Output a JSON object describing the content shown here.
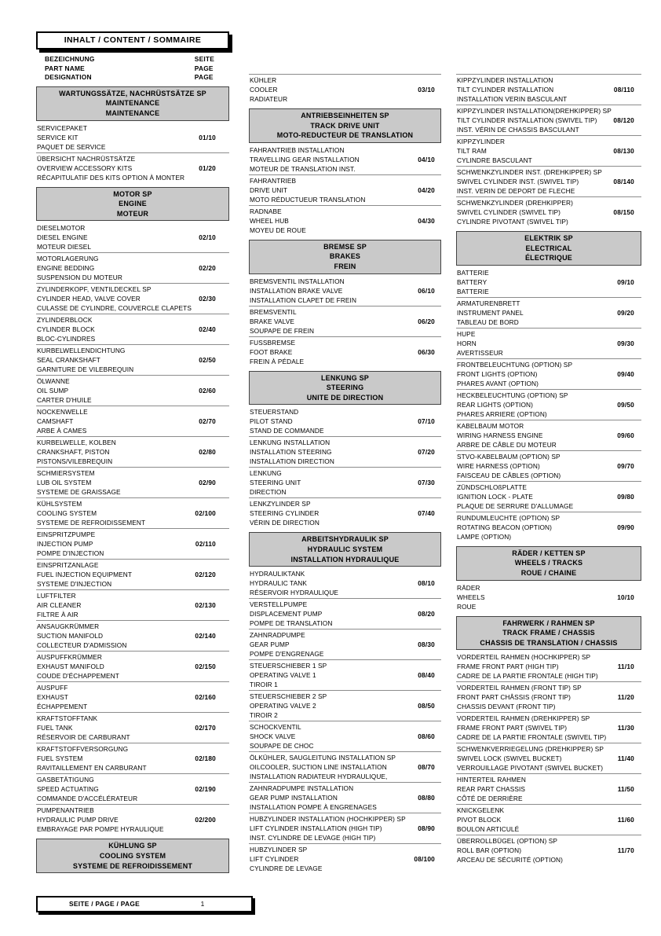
{
  "header": {
    "title": "INHALT / CONTENT / SOMMAIRE",
    "left_labels": [
      "BEZEICHNUNG",
      "PART NAME",
      "DESIGNATION"
    ],
    "right_labels": [
      "SEITE",
      "PAGE",
      "PAGE"
    ]
  },
  "footer": {
    "label": "SEITE / PAGE / PAGE",
    "page_number": "1"
  },
  "colors": {
    "section_header_bg": "#c9c9c9",
    "rule": "#8c8c8c",
    "text": "#000000",
    "page_bg": "#ffffff"
  },
  "columns": [
    {
      "blocks": [
        {
          "type": "section",
          "lines": [
            "WARTUNGSSÄTZE, NACHRÜSTSÄTZE SP",
            "MAINTENANCE",
            "MAINTENANCE"
          ]
        },
        {
          "type": "item",
          "lines": [
            "SERVICEPAKET",
            "SERVICE KIT",
            "PAQUET DE SERVICE"
          ],
          "page": "01/10"
        },
        {
          "type": "item",
          "lines": [
            "ÜBERSICHT NACHRÜSTSÄTZE",
            "OVERVIEW ACCESSORY KITS",
            "RÉCAPITULATIF DES KITS OPTION À MONTER"
          ],
          "page": "01/20"
        },
        {
          "type": "section",
          "lines": [
            "MOTOR SP",
            "ENGINE",
            "MOTEUR"
          ]
        },
        {
          "type": "item",
          "lines": [
            "DIESELMOTOR",
            "DIESEL ENGINE",
            "MOTEUR DIESEL"
          ],
          "page": "02/10"
        },
        {
          "type": "item",
          "lines": [
            "MOTORLAGERUNG",
            "ENGINE BEDDING",
            "SUSPENSION DU MOTEUR"
          ],
          "page": "02/20"
        },
        {
          "type": "item",
          "lines": [
            "ZYLINDERKOPF, VENTILDECKEL SP",
            "CYLINDER HEAD, VALVE COVER",
            "CULASSE DE CYLINDRE, COUVERCLE CLAPETS"
          ],
          "page": "02/30"
        },
        {
          "type": "item",
          "lines": [
            "ZYLINDERBLOCK",
            "CYLINDER BLOCK",
            "BLOC-CYLINDRES"
          ],
          "page": "02/40"
        },
        {
          "type": "item",
          "lines": [
            "KURBELWELLENDICHTUNG",
            "SEAL CRANKSHAFT",
            "GARNITURE DE VILEBREQUIN"
          ],
          "page": "02/50"
        },
        {
          "type": "item",
          "lines": [
            "ÖLWANNE",
            "OIL SUMP",
            "CARTER D'HUILE"
          ],
          "page": "02/60"
        },
        {
          "type": "item",
          "lines": [
            "NOCKENWELLE",
            "CAMSHAFT",
            "ARBE À CAMES"
          ],
          "page": "02/70"
        },
        {
          "type": "item",
          "lines": [
            "KURBELWELLE, KOLBEN",
            "CRANKSHAFT, PISTON",
            "PISTONS/VILEBREQUIN"
          ],
          "page": "02/80"
        },
        {
          "type": "item",
          "lines": [
            "SCHMIERSYSTEM",
            "LUB OIL SYSTEM",
            "SYSTEME DE GRAISSAGE"
          ],
          "page": "02/90"
        },
        {
          "type": "item",
          "lines": [
            "KÜHLSYSTEM",
            "COOLING SYSTEM",
            "SYSTEME DE REFROIDISSEMENT"
          ],
          "page": "02/100"
        },
        {
          "type": "item",
          "lines": [
            "EINSPRITZPUMPE",
            "INJECTION PUMP",
            "POMPE D'INJECTION"
          ],
          "page": "02/110"
        },
        {
          "type": "item",
          "lines": [
            "EINSPRITZANLAGE",
            "FUEL INJECTION EQUIPMENT",
            "SYSTEME D'INJECTION"
          ],
          "page": "02/120"
        },
        {
          "type": "item",
          "lines": [
            "LUFTFILTER",
            "AIR CLEANER",
            "FILTRE À AIR"
          ],
          "page": "02/130"
        },
        {
          "type": "item",
          "lines": [
            "ANSAUGKRÜMMER",
            "SUCTION MANIFOLD",
            "COLLECTEUR D'ADMISSION"
          ],
          "page": "02/140"
        },
        {
          "type": "item",
          "lines": [
            "AUSPUFFKRÜMMER",
            "EXHAUST MANIFOLD",
            "COUDE D'ÉCHAPPEMENT"
          ],
          "page": "02/150"
        },
        {
          "type": "item",
          "lines": [
            "AUSPUFF",
            "EXHAUST",
            "ÉCHAPPEMENT"
          ],
          "page": "02/160"
        },
        {
          "type": "item",
          "lines": [
            "KRAFTSTOFFTANK",
            "FUEL TANK",
            "RÉSERVOIR DE CARBURANT"
          ],
          "page": "02/170"
        },
        {
          "type": "item",
          "lines": [
            "KRAFTSTOFFVERSORGUNG",
            "FUEL SYSTEM",
            "RAVITAILLEMENT EN CARBURANT"
          ],
          "page": "02/180"
        },
        {
          "type": "item",
          "lines": [
            "GASBETÄTIGUNG",
            "SPEED ACTUATING",
            "COMMANDE D'ACCÉLÉRATEUR"
          ],
          "page": "02/190"
        },
        {
          "type": "item",
          "lines": [
            "PUMPENANTRIEB",
            "HYDRAULIC PUMP DRIVE",
            "EMBRAYAGE PAR POMPE HYRAULIQUE"
          ],
          "page": "02/200"
        },
        {
          "type": "section",
          "lines": [
            "KÜHLUNG SP",
            "COOLING SYSTEM",
            "SYSTEME DE REFROIDISSEMENT"
          ]
        }
      ]
    },
    {
      "blocks": [
        {
          "type": "item",
          "lines": [
            "KÜHLER",
            "COOLER",
            "RADIATEUR"
          ],
          "page": "03/10"
        },
        {
          "type": "section",
          "lines": [
            "ANTRIEBSEINHEITEN SP",
            "TRACK DRIVE UNIT",
            "MOTO-REDUCTEUR DE TRANSLATION"
          ]
        },
        {
          "type": "item",
          "lines": [
            "FAHRANTRIEB INSTALLATION",
            "TRAVELLING GEAR INSTALLATION",
            "MOTEUR DE TRANSLATION INST."
          ],
          "page": "04/10"
        },
        {
          "type": "item",
          "lines": [
            "FAHRANTRIEB",
            "DRIVE UNIT",
            "MOTO RÉDUCTUEUR TRANSLATION"
          ],
          "page": "04/20"
        },
        {
          "type": "item",
          "lines": [
            "RADNABE",
            "WHEEL HUB",
            "MOYEU DE ROUE"
          ],
          "page": "04/30"
        },
        {
          "type": "section",
          "lines": [
            "BREMSE SP",
            "BRAKES",
            "FREIN"
          ]
        },
        {
          "type": "item",
          "lines": [
            "BREMSVENTIL INSTALLATION",
            "INSTALLATION BRAKE VALVE",
            "INSTALLATION CLAPET DE FREIN"
          ],
          "page": "06/10"
        },
        {
          "type": "item",
          "lines": [
            "BREMSVENTIL",
            "BRAKE VALVE",
            "SOUPAPE DE FREIN"
          ],
          "page": "06/20"
        },
        {
          "type": "item",
          "lines": [
            "FUSSBREMSE",
            "FOOT BRAKE",
            "FREIN À PÉDALE"
          ],
          "page": "06/30"
        },
        {
          "type": "section",
          "lines": [
            "LENKUNG SP",
            "STEERING",
            "UNITE DE DIRECTION"
          ]
        },
        {
          "type": "item",
          "lines": [
            "STEUERSTAND",
            "PILOT STAND",
            "STAND DE COMMANDE"
          ],
          "page": "07/10"
        },
        {
          "type": "item",
          "lines": [
            "LENKUNG INSTALLATION",
            "INSTALLATION STEERING",
            "INSTALLATION DIRECTION"
          ],
          "page": "07/20"
        },
        {
          "type": "item",
          "lines": [
            "LENKUNG",
            "STEERING UNIT",
            "DIRECTION"
          ],
          "page": "07/30"
        },
        {
          "type": "item",
          "lines": [
            "LENKZYLINDER SP",
            "STEERING CYLINDER",
            "VÉRIN DE DIRECTION"
          ],
          "page": "07/40"
        },
        {
          "type": "section",
          "lines": [
            "ARBEITSHYDRAULIK SP",
            "HYDRAULIC SYSTEM",
            "INSTALLATION HYDRAULIQUE"
          ]
        },
        {
          "type": "item",
          "lines": [
            "HYDRAULIKTANK",
            "HYDRAULIC TANK",
            "RÉSERVOIR HYDRAULIQUE"
          ],
          "page": "08/10"
        },
        {
          "type": "item",
          "lines": [
            "VERSTELLPUMPE",
            "DISPLACEMENT PUMP",
            "POMPE DE TRANSLATION"
          ],
          "page": "08/20"
        },
        {
          "type": "item",
          "lines": [
            "ZAHNRADPUMPE",
            "GEAR PUMP",
            "POMPE D'ENGRENAGE"
          ],
          "page": "08/30"
        },
        {
          "type": "item",
          "lines": [
            "STEUERSCHIEBER 1 SP",
            "OPERATING VALVE 1",
            "TIROIR 1"
          ],
          "page": "08/40"
        },
        {
          "type": "item",
          "lines": [
            "STEUERSCHIEBER 2 SP",
            "OPERATING VALVE 2",
            "TIROIR 2"
          ],
          "page": "08/50"
        },
        {
          "type": "item",
          "lines": [
            "SCHOCKVENTIL",
            "SHOCK VALVE",
            "SOUPAPE DE CHOC"
          ],
          "page": "08/60"
        },
        {
          "type": "item",
          "lines": [
            "ÖLKÜHLER, SAUGLEITUNG INSTALLATION SP",
            "OILCOOLER, SUCTION LINE INSTALLATION",
            "INSTALLATION RADIATEUR HYDRAULIQUE,"
          ],
          "page": "08/70"
        },
        {
          "type": "item",
          "lines": [
            "ZAHNRADPUMPE INSTALLATION",
            "GEAR PUMP INSTALLATION",
            "INSTALLATION POMPE À ENGRENAGES"
          ],
          "page": "08/80"
        },
        {
          "type": "item",
          "lines": [
            "HUBZYLINDER INSTALLATION (HOCHKIPPER) SP",
            "LIFT CYLINDER INSTALLATION (HIGH TIP)",
            "INST. CYLINDRE DE LEVAGE (HIGH TIP)"
          ],
          "page": "08/90"
        },
        {
          "type": "item",
          "lines": [
            "HUBZYLINDER SP",
            "LIFT CYLINDER",
            "CYLINDRE DE LEVAGE"
          ],
          "page": "08/100"
        }
      ]
    },
    {
      "blocks": [
        {
          "type": "item",
          "lines": [
            "KIPPZYLINDER INSTALLATION",
            "TILT CYLINDER INSTALLATION",
            "INSTALLATION VERIN BASCULANT"
          ],
          "page": "08/110"
        },
        {
          "type": "item",
          "lines": [
            "KIPPZYLINDER INSTALLATION(DREHKIPPER) SP",
            "TILT CYLINDER INSTALLATION (SWIVEL TIP)",
            "INST. VÉRIN DE CHASSIS BASCULANT"
          ],
          "page": "08/120"
        },
        {
          "type": "item",
          "lines": [
            "KIPPZYLINDER",
            "TILT RAM",
            "CYLINDRE BASCULANT"
          ],
          "page": "08/130"
        },
        {
          "type": "item",
          "lines": [
            "SCHWENKZYLINDER INST. (DREHKIPPER) SP",
            "SWIVEL CYLINDER INST.  (SWIVEL TIP)",
            "INST. VERIN DE DEPORT DE FLECHE"
          ],
          "page": "08/140"
        },
        {
          "type": "item",
          "lines": [
            "SCHWENKZYLINDER (DREHKIPPER)",
            "SWIVEL CYLINDER (SWIVEL TIP)",
            "CYLINDRE PIVOTANT (SWIVEL TIP)"
          ],
          "page": "08/150"
        },
        {
          "type": "section",
          "lines": [
            "ELEKTRIK SP",
            "ELECTRICAL",
            "ÉLECTRIQUE"
          ]
        },
        {
          "type": "item",
          "lines": [
            "BATTERIE",
            "BATTERY",
            "BATTERIE"
          ],
          "page": "09/10"
        },
        {
          "type": "item",
          "lines": [
            "ARMATURENBRETT",
            "INSTRUMENT PANEL",
            "TABLEAU DE BORD"
          ],
          "page": "09/20"
        },
        {
          "type": "item",
          "lines": [
            "HUPE",
            "HORN",
            "AVERTISSEUR"
          ],
          "page": "09/30"
        },
        {
          "type": "item",
          "lines": [
            "FRONTBELEUCHTUNG (OPTION) SP",
            "FRONT LIGHTS (OPTION)",
            "PHARES AVANT (OPTION)"
          ],
          "page": "09/40"
        },
        {
          "type": "item",
          "lines": [
            "HECKBELEUCHTUNG (OPTION) SP",
            "REAR LIGHTS (OPTION)",
            "PHARES ARRIERE (OPTION)"
          ],
          "page": "09/50"
        },
        {
          "type": "item",
          "lines": [
            "KABELBAUM MOTOR",
            "WIRING HARNESS ENGINE",
            "ARBRE DE CÂBLE DU MOTEUR"
          ],
          "page": "09/60"
        },
        {
          "type": "item",
          "lines": [
            "STVO-KABELBAUM (OPTION) SP",
            "WIRE HARNESS  (OPTION)",
            "FAISCEAU DE CÂBLES  (OPTION)"
          ],
          "page": "09/70"
        },
        {
          "type": "item",
          "lines": [
            "ZÜNDSCHLOßPLATTE",
            "IGNITION LOCK - PLATE",
            "PLAQUE DE SERRURE D'ALLUMAGE"
          ],
          "page": "09/80"
        },
        {
          "type": "item",
          "lines": [
            "RUNDUMLEUCHTE (OPTION) SP",
            "ROTATING BEACON (OPTION)",
            "LAMPE (OPTION)"
          ],
          "page": "09/90"
        },
        {
          "type": "section",
          "lines": [
            "RÄDER / KETTEN SP",
            "WHEELS / TRACKS",
            "ROUE / CHAINE"
          ]
        },
        {
          "type": "item",
          "lines": [
            "RÄDER",
            "WHEELS",
            "ROUE"
          ],
          "page": "10/10"
        },
        {
          "type": "section",
          "lines": [
            "FAHRWERK / RAHMEN SP",
            "TRACK FRAME / CHASSIS",
            "CHASSIS DE TRANSLATION / CHASSIS"
          ]
        },
        {
          "type": "item",
          "lines": [
            "VORDERTEIL RAHMEN (HOCHKIPPER) SP",
            "FRAME FRONT PART (HIGH TIP)",
            "CADRE DE LA PARTIE FRONTALE (HIGH TIP)"
          ],
          "page": "11/10"
        },
        {
          "type": "item",
          "lines": [
            "VORDERTEIL RAHMEN (FRONT TIP) SP",
            "FRONT PART CHÂSSIS (FRONT TIP)",
            "CHASSIS DEVANT (FRONT TIP)"
          ],
          "page": "11/20"
        },
        {
          "type": "item",
          "lines": [
            "VORDERTEIL RAHMEN (DREHKIPPER) SP",
            "FRAME FRONT PART (SWIVEL TIP)",
            "CADRE DE LA PARTIE FRONTALE (SWIVEL TIP)"
          ],
          "page": "11/30"
        },
        {
          "type": "item",
          "lines": [
            "SCHWENKVERRIEGELUNG (DREHKIPPER) SP",
            "SWIVEL LOCK (SWIVEL BUCKET)",
            "VERROUILLAGE PIVOTANT (SWIVEL BUCKET)"
          ],
          "page": "11/40"
        },
        {
          "type": "item",
          "lines": [
            "HINTERTEIL RAHMEN",
            "REAR PART CHASSIS",
            "CÔTÉ DE DERRIÈRE"
          ],
          "page": "11/50"
        },
        {
          "type": "item",
          "lines": [
            "KNICKGELENK",
            "PIVOT BLOCK",
            "BOULON ARTICULÉ"
          ],
          "page": "11/60"
        },
        {
          "type": "item",
          "lines": [
            "ÜBERROLLBÜGEL (OPTION) SP",
            "ROLL BAR (OPTION)",
            "ARCEAU DE SÉCURITÉ (OPTION)"
          ],
          "page": "11/70"
        }
      ]
    }
  ]
}
